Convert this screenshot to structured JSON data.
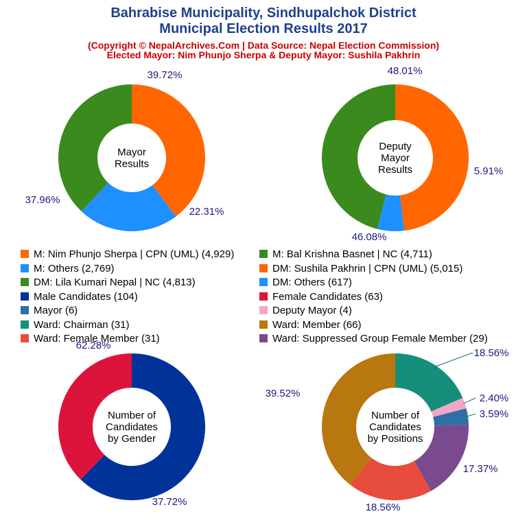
{
  "header": {
    "title_line1": "Bahrabise Municipality, Sindhupalchok District",
    "title_line2": "Municipal Election Results 2017",
    "subtitle_line1": "(Copyright © NepalArchives.Com | Data Source: Nepal Election Commission)",
    "subtitle_line2": "Elected Mayor: Nim Phunjo Sherpa & Deputy Mayor: Sushila Pakhrin"
  },
  "legend": [
    {
      "label": "M: Nim Phunjo Sherpa | CPN (UML) (4,929)",
      "color": "#ff6600"
    },
    {
      "label": "M: Bal Krishna Basnet | NC (4,711)",
      "color": "#3a8a1e"
    },
    {
      "label": "M: Others (2,769)",
      "color": "#1e90ff"
    },
    {
      "label": "DM: Sushila Pakhrin | CPN (UML) (5,015)",
      "color": "#ff6600"
    },
    {
      "label": "DM: Lila Kumari Nepal | NC (4,813)",
      "color": "#3a8a1e"
    },
    {
      "label": "DM: Others (617)",
      "color": "#1e90ff"
    },
    {
      "label": "Male Candidates (104)",
      "color": "#003399"
    },
    {
      "label": "Female Candidates (63)",
      "color": "#dc143c"
    },
    {
      "label": "Mayor (6)",
      "color": "#2e6fa6"
    },
    {
      "label": "Deputy Mayor (4)",
      "color": "#f4a6c8"
    },
    {
      "label": "Ward: Chairman (31)",
      "color": "#158f7a"
    },
    {
      "label": "Ward: Member (66)",
      "color": "#b8770f"
    },
    {
      "label": "Ward: Female Member (31)",
      "color": "#e84c3d"
    },
    {
      "label": "Ward: Suppressed Group Female Member (29)",
      "color": "#7a4a8f"
    }
  ],
  "chart_data": [
    {
      "type": "pie",
      "center_label": [
        "Mayor",
        "Results"
      ],
      "slices": [
        {
          "label": "M: Nim Phunjo Sherpa | CPN (UML)",
          "value": 4929,
          "percent": "39.72%",
          "color": "#ff6600"
        },
        {
          "label": "M: Others",
          "value": 2769,
          "percent": "22.31%",
          "color": "#1e90ff"
        },
        {
          "label": "M: Bal Krishna Basnet | NC",
          "value": 4711,
          "percent": "37.96%",
          "color": "#3a8a1e"
        }
      ]
    },
    {
      "type": "pie",
      "center_label": [
        "Deputy",
        "Mayor",
        "Results"
      ],
      "slices": [
        {
          "label": "DM: Sushila Pakhrin | CPN (UML)",
          "value": 5015,
          "percent": "48.01%",
          "color": "#ff6600"
        },
        {
          "label": "DM: Others",
          "value": 617,
          "percent": "5.91%",
          "color": "#1e90ff"
        },
        {
          "label": "DM: Lila Kumari Nepal | NC",
          "value": 4813,
          "percent": "46.08%",
          "color": "#3a8a1e"
        }
      ]
    },
    {
      "type": "pie",
      "center_label": [
        "Number of",
        "Candidates",
        "by Gender"
      ],
      "slices": [
        {
          "label": "Male Candidates",
          "value": 104,
          "percent": "62.28%",
          "color": "#003399"
        },
        {
          "label": "Female Candidates",
          "value": 63,
          "percent": "37.72%",
          "color": "#dc143c"
        }
      ]
    },
    {
      "type": "pie",
      "center_label": [
        "Number of",
        "Candidates",
        "by Positions"
      ],
      "slices": [
        {
          "label": "Ward: Chairman",
          "value": 31,
          "percent": "18.56%",
          "color": "#158f7a"
        },
        {
          "label": "Deputy Mayor",
          "value": 4,
          "percent": "2.40%",
          "color": "#f4a6c8"
        },
        {
          "label": "Mayor",
          "value": 6,
          "percent": "3.59%",
          "color": "#2e6fa6"
        },
        {
          "label": "Ward: Suppressed Group Female Member",
          "value": 29,
          "percent": "17.37%",
          "color": "#7a4a8f"
        },
        {
          "label": "Ward: Female Member",
          "value": 31,
          "percent": "18.56%",
          "color": "#e84c3d"
        },
        {
          "label": "Ward: Member",
          "value": 66,
          "percent": "39.52%",
          "color": "#b8770f"
        }
      ]
    }
  ]
}
